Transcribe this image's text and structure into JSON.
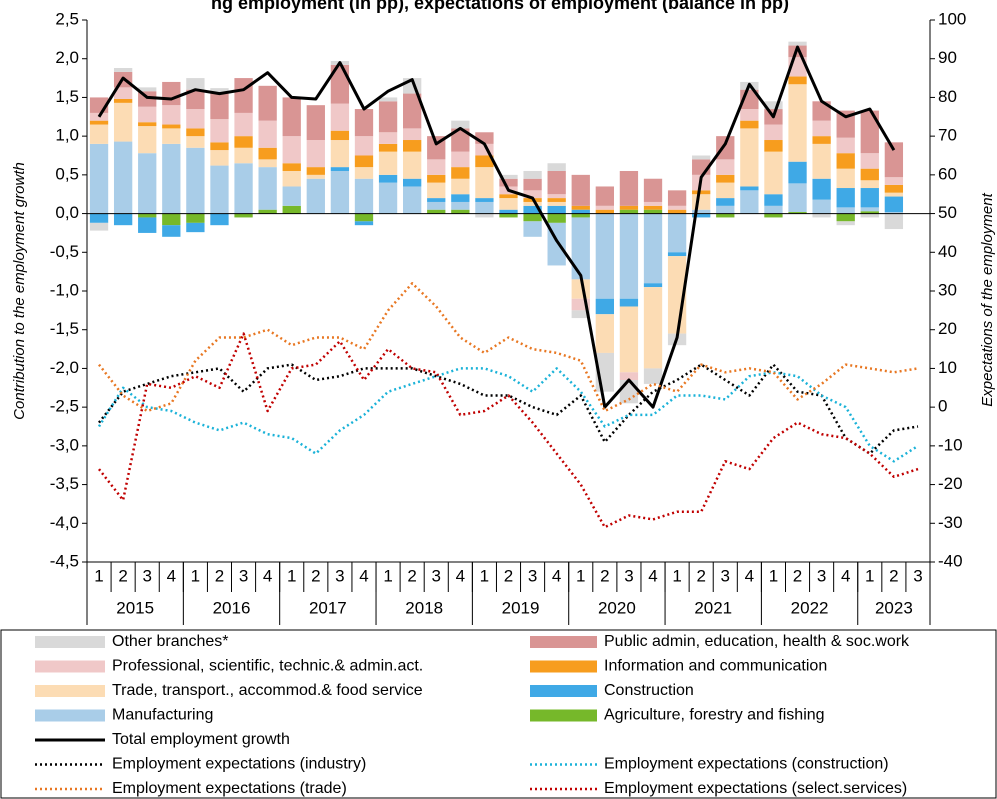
{
  "chart_data": {
    "type": "bar",
    "title": "ng employment (in pp), expectations of employment (balance in pp)",
    "y_label": "Contribution to the employment growth",
    "y2_label": "Expectations of the employment",
    "categories": [
      "1",
      "2",
      "3",
      "4",
      "1",
      "2",
      "3",
      "4",
      "1",
      "2",
      "3",
      "4",
      "1",
      "2",
      "3",
      "4",
      "1",
      "2",
      "3",
      "4",
      "1",
      "2",
      "3",
      "4",
      "1",
      "2",
      "3",
      "4",
      "1",
      "2",
      "3",
      "4",
      "1",
      "2",
      "3"
    ],
    "years": [
      "2015",
      "2016",
      "2017",
      "2018",
      "2019",
      "2020",
      "2021",
      "2022",
      "2023"
    ],
    "stacked": true,
    "ylim": [
      -4.5,
      2.5
    ],
    "yticks": [
      {
        "value": 2.5,
        "label": "2,5"
      },
      {
        "value": 2,
        "label": "2,0"
      },
      {
        "value": 1.5,
        "label": "1,5"
      },
      {
        "value": 1,
        "label": "1,0"
      },
      {
        "value": 0.5,
        "label": "0,5"
      },
      {
        "value": 0,
        "label": "0,0"
      },
      {
        "value": -0.5,
        "label": "-0,5"
      },
      {
        "value": -1,
        "label": "-1,0"
      },
      {
        "value": -1.5,
        "label": "-1,5"
      },
      {
        "value": -2,
        "label": "-2,0"
      },
      {
        "value": -2.5,
        "label": "-2,5"
      },
      {
        "value": -3,
        "label": "-3,0"
      },
      {
        "value": -3.5,
        "label": "-3,5"
      },
      {
        "value": -4,
        "label": "-4,0"
      },
      {
        "value": -4.5,
        "label": "-4,5"
      }
    ],
    "y2lim": [
      -40,
      100
    ],
    "y2ticks": [
      100,
      90,
      80,
      70,
      60,
      50,
      40,
      30,
      20,
      10,
      0,
      -10,
      -20,
      -30,
      -40
    ],
    "grid": false,
    "series": [
      {
        "name": "Other branches*",
        "type": "bar",
        "color": "#d9d9d9",
        "values": [
          -0.1,
          0.05,
          0.05,
          0,
          0.15,
          0.05,
          0,
          0,
          0,
          0,
          0.05,
          0,
          0.05,
          0.2,
          0,
          0.1,
          -0.05,
          0.05,
          0.1,
          0.1,
          -0.1,
          -0.5,
          -0.3,
          -0.2,
          -0.15,
          0.05,
          0,
          0.1,
          0.1,
          0.05,
          -0.05,
          -0.05,
          -0.05,
          -0.2,
          null
        ]
      },
      {
        "name": "Public admin, education, health & soc.work",
        "type": "bar",
        "color": "#d99594",
        "values": [
          0.2,
          0.2,
          0.2,
          0.3,
          0.25,
          0.35,
          0.45,
          0.45,
          0.5,
          0.45,
          0.5,
          0.35,
          0.4,
          0.45,
          0.3,
          0.3,
          0.15,
          0.1,
          0.15,
          0.3,
          0.4,
          0.25,
          0.45,
          0.3,
          0.2,
          0.2,
          0.3,
          0.25,
          0.2,
          0.15,
          0.25,
          0.35,
          0.55,
          0.45,
          null
        ]
      },
      {
        "name": "Professional, scientific, technic.& admin.act.",
        "type": "bar",
        "color": "#f0c8c8",
        "values": [
          0.1,
          0.15,
          0.2,
          0.25,
          0.25,
          0.3,
          0.3,
          0.35,
          0.35,
          0.35,
          0.35,
          0.25,
          0.15,
          0.15,
          0.2,
          0.2,
          0.15,
          0.1,
          0.1,
          0.05,
          -0.15,
          0.05,
          -0.1,
          0.05,
          0.05,
          0.2,
          0.2,
          0.15,
          0.2,
          0.25,
          0.2,
          0.2,
          0.2,
          0.1,
          null
        ]
      },
      {
        "name": "Information and communication",
        "type": "bar",
        "color": "#f79d1e",
        "values": [
          0.05,
          0.05,
          0.05,
          0.05,
          0.1,
          0.1,
          0.15,
          0.15,
          0.1,
          0.1,
          0.12,
          0.15,
          0.1,
          0.15,
          0.1,
          0.15,
          0.15,
          0.05,
          0.05,
          0.05,
          0.05,
          0.05,
          0.05,
          0.05,
          0.05,
          0.05,
          0.1,
          0.1,
          0.15,
          0.1,
          0.1,
          0.2,
          0.15,
          0.1,
          null
        ]
      },
      {
        "name": "Trade, transport., accommod.& food service",
        "type": "bar",
        "color": "#fcdcb4",
        "values": [
          0.25,
          0.5,
          0.35,
          0.2,
          0.15,
          0.2,
          0.2,
          0.1,
          0.2,
          0.05,
          0.35,
          0.15,
          0.3,
          0.35,
          0.2,
          0.2,
          0.4,
          0.15,
          0.05,
          0.05,
          -0.25,
          -0.5,
          -0.85,
          -1.05,
          -1.0,
          0.2,
          0.2,
          0.75,
          0.55,
          1.0,
          0.45,
          0.25,
          0.1,
          0.05,
          null
        ]
      },
      {
        "name": "Construction",
        "type": "bar",
        "color": "#3fa9e6",
        "values": [
          -0.12,
          -0.15,
          -0.2,
          -0.15,
          -0.12,
          -0.15,
          0,
          0,
          0,
          0,
          0.05,
          -0.05,
          0.1,
          0.1,
          0.05,
          0.1,
          0.05,
          0.05,
          0.1,
          0.1,
          0.05,
          -0.2,
          -0.1,
          -0.05,
          -0.05,
          -0.05,
          0.1,
          0.05,
          0.15,
          0.28,
          0.27,
          0.25,
          0.25,
          0.2,
          null
        ]
      },
      {
        "name": "Manufacturing",
        "type": "bar",
        "color": "#a9cde8",
        "values": [
          0.9,
          0.93,
          0.78,
          0.9,
          0.85,
          0.62,
          0.65,
          0.55,
          0.25,
          0.45,
          0.55,
          0.45,
          0.4,
          0.35,
          0.1,
          0.1,
          0.15,
          0,
          -0.2,
          -0.55,
          -0.8,
          -1.1,
          -1.1,
          -0.9,
          -0.5,
          0.05,
          0.1,
          0.3,
          0.1,
          0.37,
          0.18,
          0.08,
          0.05,
          0.02,
          null
        ]
      },
      {
        "name": "Agriculture, forestry and fishing",
        "type": "bar",
        "color": "#76b82a",
        "values": [
          0,
          0,
          -0.05,
          -0.15,
          -0.12,
          0,
          -0.05,
          0.05,
          0.1,
          0,
          0,
          -0.1,
          0,
          0,
          0.05,
          0.05,
          0,
          -0.05,
          -0.1,
          -0.12,
          -0.05,
          0,
          0.05,
          0.05,
          0,
          0,
          -0.05,
          0,
          -0.05,
          0.02,
          0,
          -0.1,
          0.03,
          0,
          null
        ]
      },
      {
        "name": "Total employment growth",
        "type": "line",
        "color": "#000000",
        "line_style": "solid",
        "values": [
          1.25,
          1.75,
          1.5,
          1.48,
          1.6,
          1.55,
          1.6,
          1.82,
          1.5,
          1.48,
          1.95,
          1.35,
          1.58,
          1.73,
          0.9,
          1.1,
          0.9,
          0.3,
          0.2,
          -0.35,
          -0.8,
          -2.5,
          -2.15,
          -2.5,
          -1.6,
          0.47,
          0.9,
          1.67,
          1.25,
          2.15,
          1.45,
          1.25,
          1.35,
          0.82,
          null
        ]
      },
      {
        "name": "Employment expectations (industry)",
        "type": "line",
        "axis": "y2",
        "color": "#000000",
        "line_style": "dotted",
        "values": [
          -4,
          4,
          6,
          8,
          9,
          10,
          4,
          10,
          11,
          7,
          8,
          10,
          10,
          10,
          8,
          6,
          3,
          3,
          0,
          -2,
          3,
          -9,
          -2,
          4,
          7,
          11,
          7,
          3,
          11,
          4,
          3,
          -8,
          -12,
          -6,
          -5
        ]
      },
      {
        "name": "Employment expectations (construction)",
        "type": "line",
        "axis": "y2",
        "color": "#1ab2d8",
        "line_style": "dotted",
        "values": [
          -5,
          5,
          0,
          -1,
          -4,
          -6,
          -4,
          -7,
          -8,
          -12,
          -6,
          -2,
          4,
          6,
          8,
          10,
          10,
          8,
          4,
          10,
          4,
          -5,
          -2,
          -2,
          3,
          3,
          2,
          8,
          9,
          8,
          3,
          0,
          -10,
          -14,
          -10
        ]
      },
      {
        "name": "Employment expectations (trade)",
        "type": "line",
        "axis": "y2",
        "color": "#e87722",
        "line_style": "dotted",
        "values": [
          11,
          3,
          -1,
          1,
          12,
          18,
          18,
          20,
          16,
          18,
          18,
          15,
          25,
          32,
          26,
          18,
          14,
          18,
          15,
          14,
          12,
          -1,
          2,
          6,
          4,
          11,
          9,
          10,
          9,
          2,
          6,
          11,
          10,
          9,
          10
        ]
      },
      {
        "name": "Employment expectations (select.services)",
        "type": "line",
        "axis": "y2",
        "color": "#c00000",
        "line_style": "dotted",
        "values": [
          -16,
          -24,
          6,
          5,
          8,
          5,
          19,
          -1,
          10,
          11,
          17,
          7,
          15,
          10,
          9,
          -2,
          -1,
          3,
          -4,
          -12,
          -20,
          -31,
          -28,
          -29,
          -27,
          -27,
          -14,
          -16,
          -8,
          -4,
          -7,
          -8,
          -12,
          -18,
          -16
        ]
      }
    ]
  }
}
